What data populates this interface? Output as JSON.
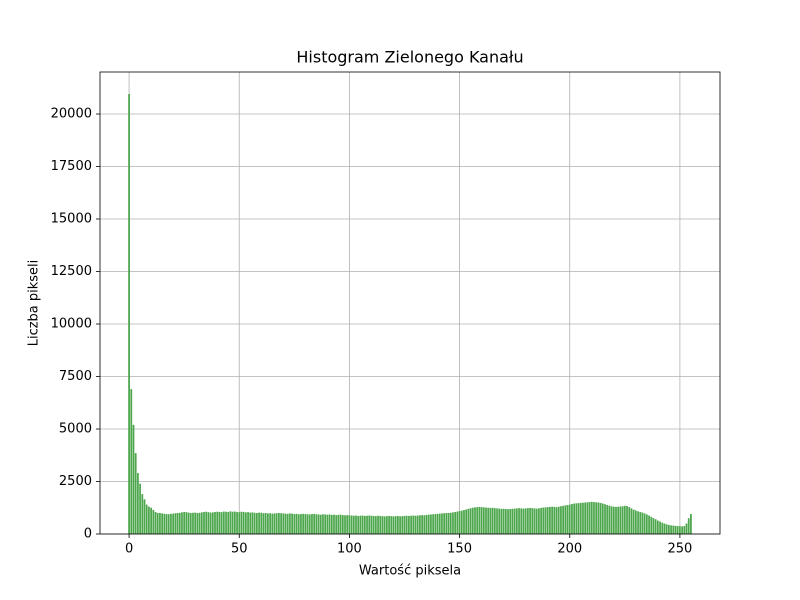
{
  "chart_data": {
    "type": "bar",
    "title": "Histogram Zielonego Kanału",
    "xlabel": "Wartość piksela",
    "ylabel": "Liczba pikseli",
    "x": [
      0,
      1,
      2,
      3,
      4,
      5,
      6,
      7,
      8,
      9,
      10,
      11,
      12,
      13,
      14,
      15,
      16,
      17,
      18,
      19,
      20,
      21,
      22,
      23,
      24,
      25,
      26,
      27,
      28,
      29,
      30,
      31,
      32,
      33,
      34,
      35,
      36,
      37,
      38,
      39,
      40,
      41,
      42,
      43,
      44,
      45,
      46,
      47,
      48,
      49,
      50,
      51,
      52,
      53,
      54,
      55,
      56,
      57,
      58,
      59,
      60,
      61,
      62,
      63,
      64,
      65,
      66,
      67,
      68,
      69,
      70,
      71,
      72,
      73,
      74,
      75,
      76,
      77,
      78,
      79,
      80,
      81,
      82,
      83,
      84,
      85,
      86,
      87,
      88,
      89,
      90,
      91,
      92,
      93,
      94,
      95,
      96,
      97,
      98,
      99,
      100,
      101,
      102,
      103,
      104,
      105,
      106,
      107,
      108,
      109,
      110,
      111,
      112,
      113,
      114,
      115,
      116,
      117,
      118,
      119,
      120,
      121,
      122,
      123,
      124,
      125,
      126,
      127,
      128,
      129,
      130,
      131,
      132,
      133,
      134,
      135,
      136,
      137,
      138,
      139,
      140,
      141,
      142,
      143,
      144,
      145,
      146,
      147,
      148,
      149,
      150,
      151,
      152,
      153,
      154,
      155,
      156,
      157,
      158,
      159,
      160,
      161,
      162,
      163,
      164,
      165,
      166,
      167,
      168,
      169,
      170,
      171,
      172,
      173,
      174,
      175,
      176,
      177,
      178,
      179,
      180,
      181,
      182,
      183,
      184,
      185,
      186,
      187,
      188,
      189,
      190,
      191,
      192,
      193,
      194,
      195,
      196,
      197,
      198,
      199,
      200,
      201,
      202,
      203,
      204,
      205,
      206,
      207,
      208,
      209,
      210,
      211,
      212,
      213,
      214,
      215,
      216,
      217,
      218,
      219,
      220,
      221,
      222,
      223,
      224,
      225,
      226,
      227,
      228,
      229,
      230,
      231,
      232,
      233,
      234,
      235,
      236,
      237,
      238,
      239,
      240,
      241,
      242,
      243,
      244,
      245,
      246,
      247,
      248,
      249,
      250,
      251,
      252,
      253,
      254,
      255
    ],
    "values": [
      20950,
      6900,
      5200,
      3850,
      2900,
      2400,
      1900,
      1650,
      1400,
      1300,
      1250,
      1150,
      1050,
      1000,
      1000,
      980,
      960,
      950,
      940,
      960,
      970,
      990,
      1000,
      1010,
      1030,
      1050,
      1040,
      1020,
      1000,
      1010,
      1020,
      1000,
      1010,
      1030,
      1050,
      1060,
      1040,
      1020,
      1030,
      1050,
      1060,
      1050,
      1040,
      1070,
      1060,
      1050,
      1080,
      1060,
      1070,
      1050,
      1040,
      1060,
      1050,
      1030,
      1040,
      1020,
      1030,
      1010,
      1000,
      1020,
      1010,
      990,
      1000,
      980,
      990,
      970,
      980,
      990,
      1000,
      990,
      980,
      970,
      960,
      980,
      970,
      950,
      960,
      940,
      950,
      960,
      950,
      940,
      930,
      950,
      960,
      940,
      930,
      920,
      940,
      930,
      920,
      930,
      910,
      920,
      900,
      910,
      920,
      900,
      890,
      900,
      890,
      880,
      870,
      880,
      860,
      870,
      880,
      860,
      870,
      880,
      870,
      860,
      850,
      870,
      860,
      850,
      840,
      850,
      860,
      850,
      840,
      850,
      860,
      840,
      850,
      860,
      870,
      860,
      870,
      880,
      870,
      880,
      890,
      900,
      890,
      910,
      920,
      930,
      940,
      950,
      960,
      970,
      980,
      990,
      1000,
      1000,
      1010,
      1030,
      1050,
      1070,
      1090,
      1110,
      1140,
      1170,
      1200,
      1230,
      1250,
      1270,
      1280,
      1290,
      1280,
      1270,
      1260,
      1250,
      1240,
      1250,
      1230,
      1220,
      1210,
      1200,
      1200,
      1190,
      1180,
      1190,
      1200,
      1210,
      1220,
      1230,
      1220,
      1210,
      1220,
      1230,
      1240,
      1230,
      1220,
      1210,
      1220,
      1240,
      1260,
      1270,
      1280,
      1290,
      1300,
      1290,
      1280,
      1300,
      1320,
      1340,
      1360,
      1380,
      1400,
      1430,
      1450,
      1460,
      1470,
      1480,
      1490,
      1500,
      1510,
      1520,
      1530,
      1520,
      1510,
      1500,
      1480,
      1450,
      1420,
      1380,
      1350,
      1320,
      1300,
      1290,
      1300,
      1310,
      1320,
      1340,
      1330,
      1280,
      1220,
      1160,
      1120,
      1080,
      1050,
      1020,
      980,
      930,
      880,
      820,
      760,
      700,
      640,
      590,
      540,
      500,
      460,
      430,
      410,
      400,
      390,
      380,
      370,
      360,
      380,
      500,
      750,
      950
    ],
    "color": "#4ca64c",
    "xlim": [
      -13.2,
      268.2
    ],
    "ylim": [
      0,
      22000
    ],
    "xticks": [
      0,
      50,
      100,
      150,
      200,
      250
    ],
    "yticks": [
      0,
      2500,
      5000,
      7500,
      10000,
      12500,
      15000,
      17500,
      20000
    ],
    "grid": true
  }
}
